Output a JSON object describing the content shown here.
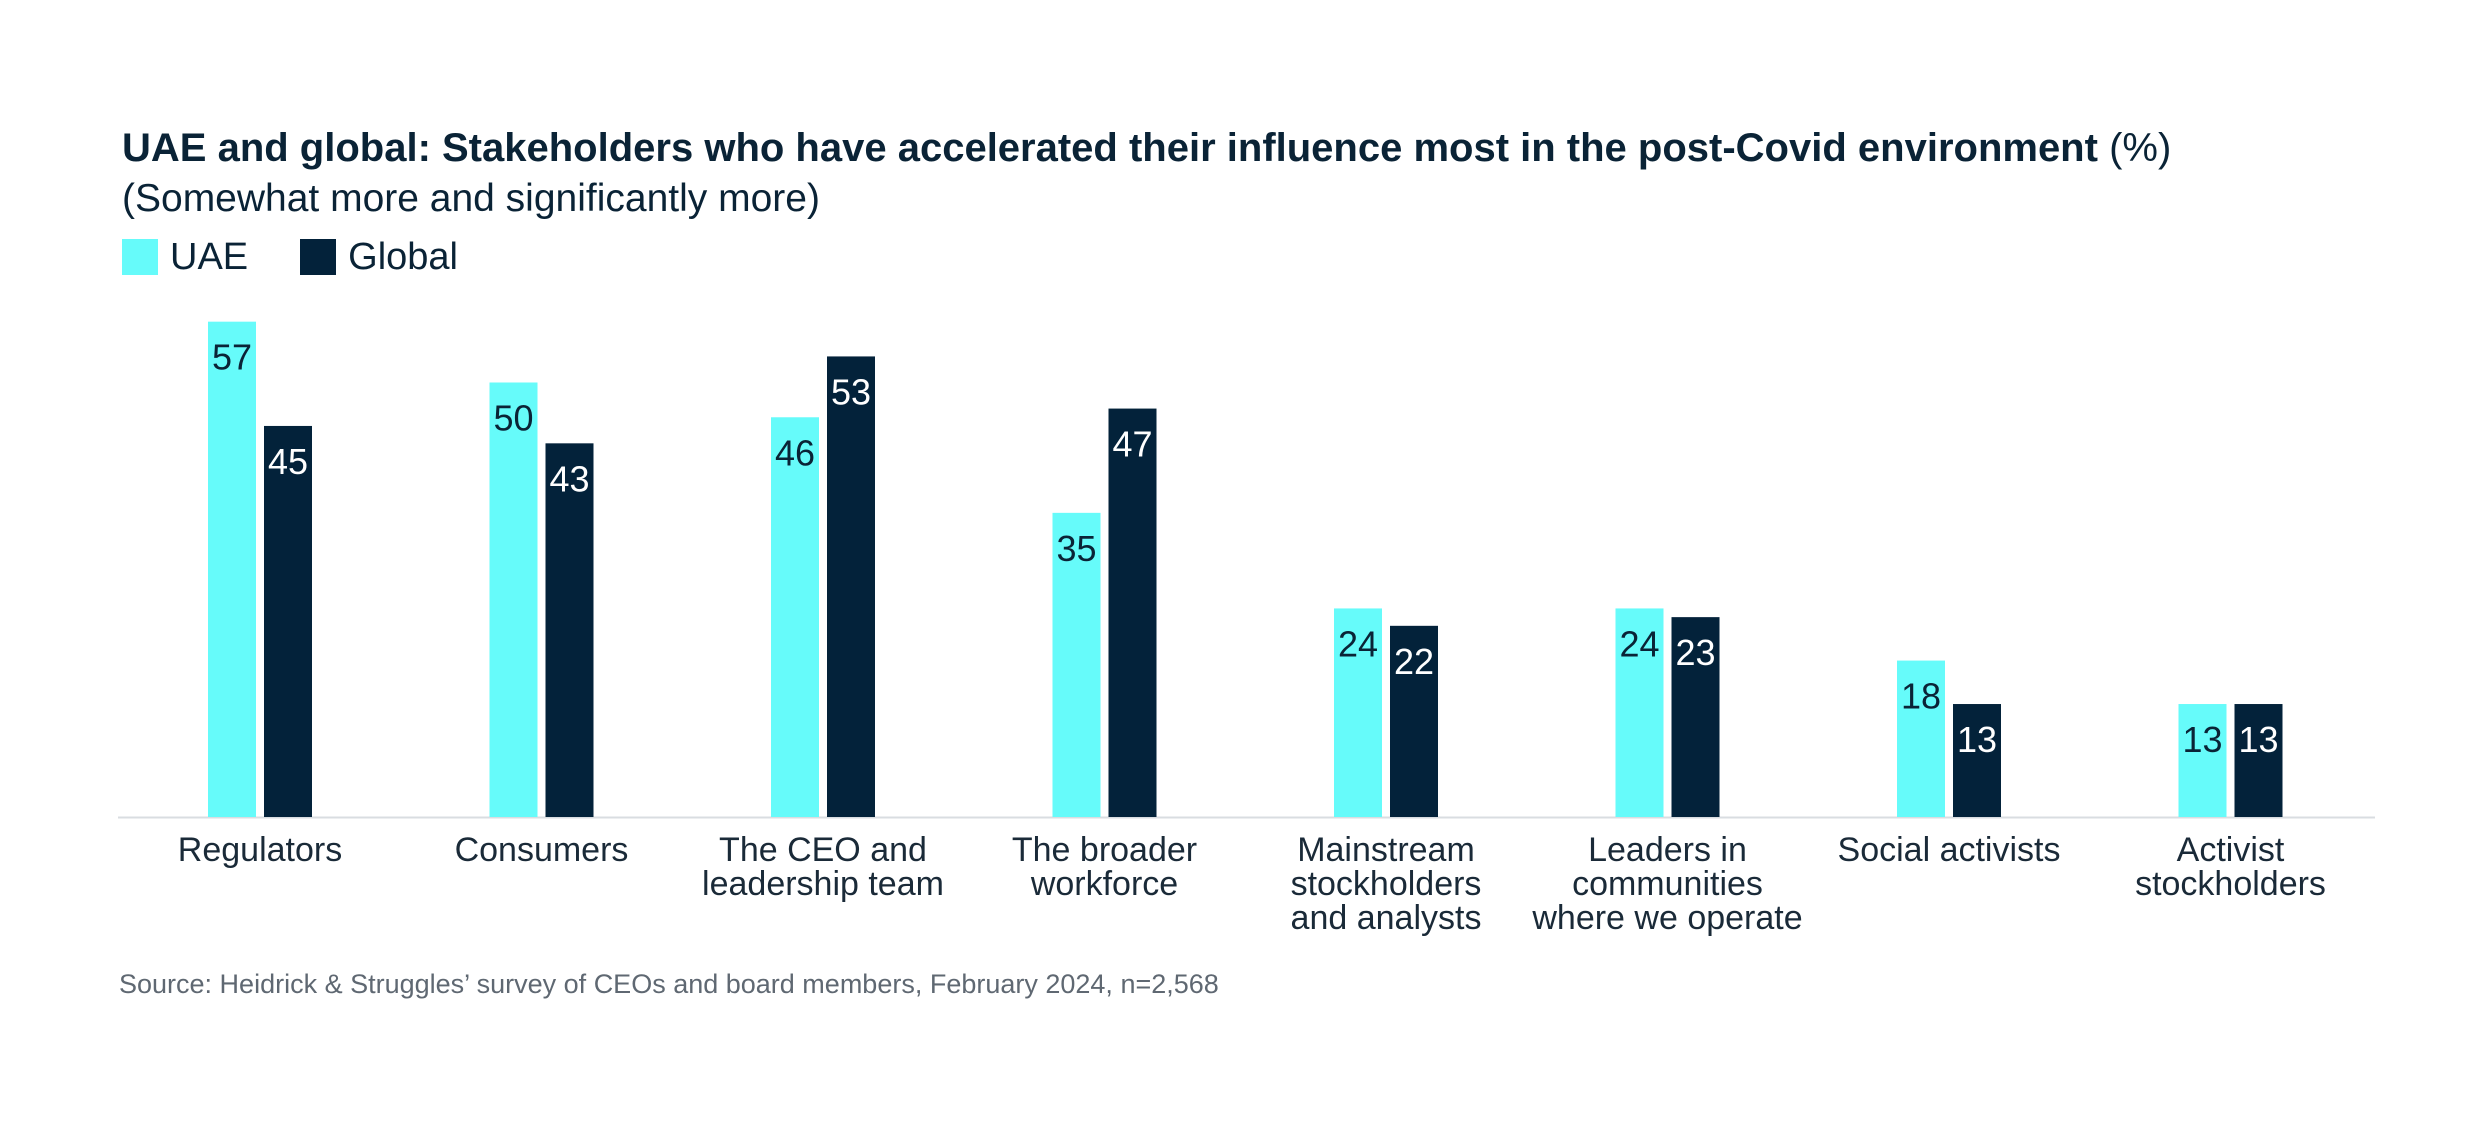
{
  "chart_data": {
    "type": "bar",
    "title": "UAE and global: Stakeholders who have accelerated their influence most in the post-Covid environment",
    "title_unit": "(%)",
    "subtitle": "(Somewhat more and significantly more)",
    "categories": [
      [
        "Regulators"
      ],
      [
        "Consumers"
      ],
      [
        "The CEO and",
        "leadership team"
      ],
      [
        "The broader",
        "workforce"
      ],
      [
        "Mainstream",
        "stockholders",
        "and analysts"
      ],
      [
        "Leaders in",
        "communities",
        "where we operate"
      ],
      [
        "Social activists"
      ],
      [
        "Activist",
        "stockholders"
      ]
    ],
    "series": [
      {
        "name": "UAE",
        "color": "#66fbfa",
        "label_color": "#0a2336",
        "values": [
          57,
          50,
          46,
          35,
          24,
          24,
          18,
          13
        ]
      },
      {
        "name": "Global",
        "color": "#03223a",
        "label_color": "#ffffff",
        "values": [
          45,
          43,
          53,
          47,
          22,
          23,
          13,
          13
        ]
      }
    ],
    "ylim": [
      0,
      57
    ],
    "grid": false,
    "legend_position": "top-left",
    "source": "Source: Heidrick & Struggles’ survey of CEOs and board members, February 2024, n=2,568"
  }
}
